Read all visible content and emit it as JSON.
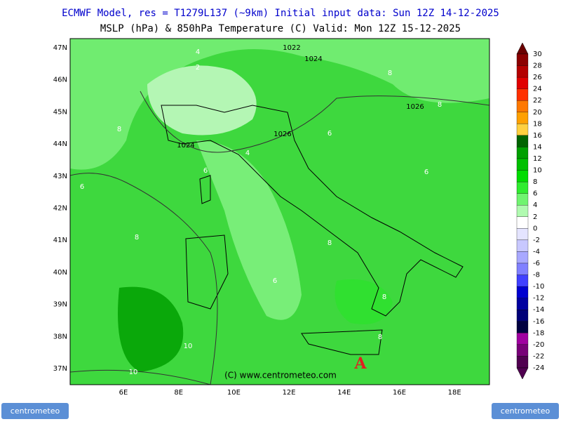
{
  "header": {
    "line1": "ECMWF Model, res = T1279L137 (~9km)    Initial input data: Sun 12Z 14-12-2025",
    "line2": "MSLP (hPa) & 850hPa Temperature (C)  Valid: Mon 12Z 15-12-2025"
  },
  "lat_labels": [
    "47N",
    "46N",
    "45N",
    "44N",
    "43N",
    "42N",
    "41N",
    "40N",
    "39N",
    "38N",
    "37N"
  ],
  "lon_labels": [
    "6E",
    "8E",
    "10E",
    "12E",
    "14E",
    "16E",
    "18E"
  ],
  "colorbar": {
    "labels": [
      "30",
      "28",
      "26",
      "24",
      "22",
      "20",
      "18",
      "16",
      "14",
      "12",
      "10",
      "8",
      "6",
      "4",
      "2",
      "0",
      "-2",
      "-4",
      "-6",
      "-8",
      "-10",
      "-12",
      "-14",
      "-16",
      "-18",
      "-20",
      "-22",
      "-24"
    ],
    "colors": [
      "#6b0000",
      "#8b0000",
      "#b40000",
      "#e00000",
      "#ff3000",
      "#ff7800",
      "#ffa000",
      "#ffd040",
      "#006400",
      "#00a000",
      "#00c000",
      "#00dc00",
      "#30ec30",
      "#70f470",
      "#b0fab0",
      "#ffffff",
      "#e4e4ff",
      "#c8c8ff",
      "#a8a8ff",
      "#8080ff",
      "#4040ff",
      "#0000d0",
      "#0000a0",
      "#000078",
      "#000040",
      "#a000a0",
      "#780078",
      "#500050"
    ]
  },
  "isobar_labels": [
    "1022",
    "1024",
    "1026",
    "1026",
    "1024"
  ],
  "temperature_labels": [
    "4",
    "2",
    "8",
    "8",
    "8",
    "6",
    "4",
    "6",
    "6",
    "6",
    "8",
    "8",
    "6",
    "8",
    "8",
    "10",
    "10"
  ],
  "high_marker": "A",
  "copyright": "(C) www.centrometeo.com",
  "logos": {
    "left": "centrometeo",
    "right": "centrometeo"
  }
}
